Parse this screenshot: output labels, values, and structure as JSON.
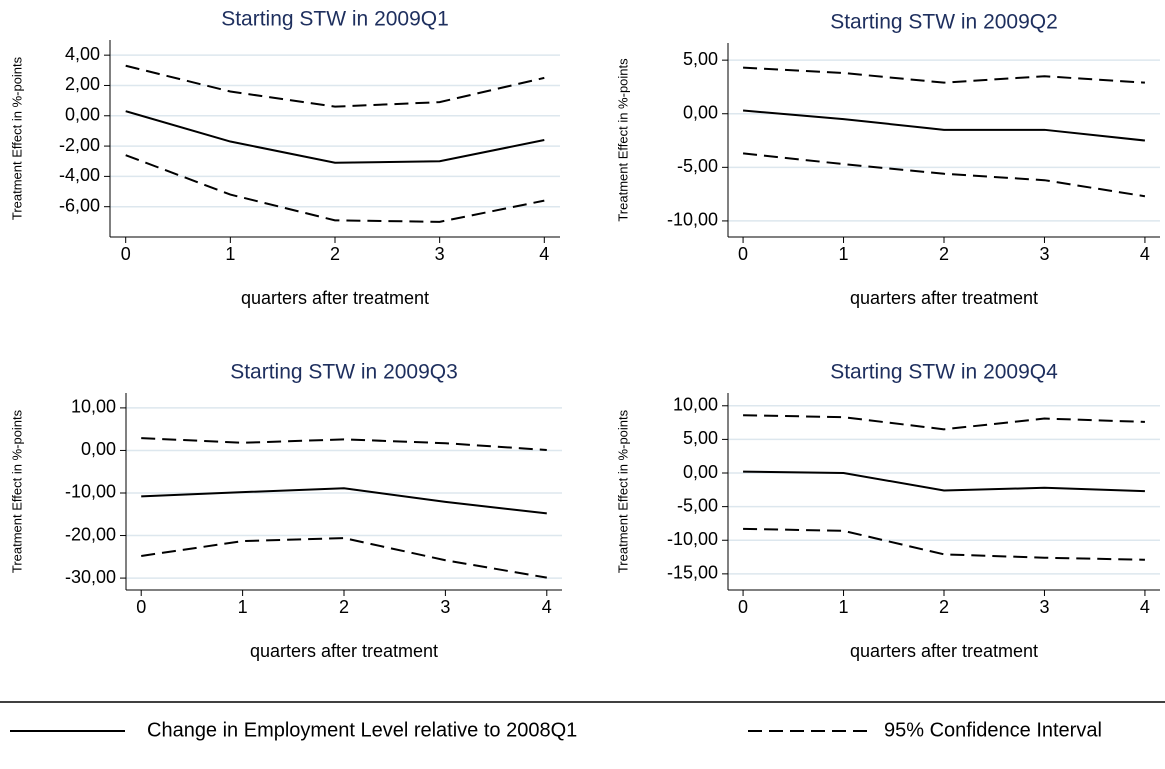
{
  "chart_data": [
    {
      "type": "line",
      "title": "Starting STW in 2009Q1",
      "xlabel": "quarters after treatment",
      "ylabel": "Treatment Effect in %-points",
      "x": [
        0,
        1,
        2,
        3,
        4
      ],
      "xlim": [
        -0.15,
        4.15
      ],
      "xticks": [
        0,
        1,
        2,
        3,
        4
      ],
      "ylim": [
        -8,
        5
      ],
      "yticks": [
        {
          "value": -6,
          "label": "-6,00"
        },
        {
          "value": -4,
          "label": "-4,00"
        },
        {
          "value": -2,
          "label": "-2,00"
        },
        {
          "value": 0,
          "label": "0,00"
        },
        {
          "value": 2,
          "label": "2,00"
        },
        {
          "value": 4,
          "label": "4,00"
        }
      ],
      "grid": true,
      "series": [
        {
          "name": "Change in Employment Level relative to 2008Q1",
          "color": "#000000",
          "values": [
            0.3,
            -1.7,
            -3.1,
            -3.0,
            -1.6
          ]
        },
        {
          "name": "95% Confidence Interval",
          "color": "#000000",
          "upper": [
            3.3,
            1.6,
            0.6,
            0.9,
            2.5
          ],
          "lower": [
            -2.6,
            -5.2,
            -6.9,
            -7.0,
            -5.6
          ]
        }
      ]
    },
    {
      "type": "line",
      "title": "Starting STW in 2009Q2",
      "xlabel": "quarters after treatment",
      "ylabel": "Treatment Effect in %-points",
      "x": [
        0,
        1,
        2,
        3,
        4
      ],
      "xlim": [
        -0.15,
        4.15
      ],
      "xticks": [
        0,
        1,
        2,
        3,
        4
      ],
      "ylim": [
        -11.5,
        6.6
      ],
      "yticks": [
        {
          "value": -10,
          "label": "-10,00"
        },
        {
          "value": -5,
          "label": "-5,00"
        },
        {
          "value": 0,
          "label": "0,00"
        },
        {
          "value": 5,
          "label": "5,00"
        }
      ],
      "grid": true,
      "series": [
        {
          "color": "#000000",
          "values": [
            0.3,
            -0.5,
            -1.5,
            -1.5,
            -2.5
          ]
        },
        {
          "color": "#000000",
          "upper": [
            4.3,
            3.8,
            2.9,
            3.5,
            2.9
          ],
          "lower": [
            -3.7,
            -4.7,
            -5.6,
            -6.2,
            -7.7
          ]
        }
      ]
    },
    {
      "type": "line",
      "title": "Starting STW in 2009Q3",
      "xlabel": "quarters after treatment",
      "ylabel": "Treatment Effect in %-points",
      "x": [
        0,
        1,
        2,
        3,
        4
      ],
      "xlim": [
        -0.15,
        4.15
      ],
      "xticks": [
        0,
        1,
        2,
        3,
        4
      ],
      "ylim": [
        -32.8,
        13.5
      ],
      "yticks": [
        {
          "value": -30,
          "label": "-30,00"
        },
        {
          "value": -20,
          "label": "-20,00"
        },
        {
          "value": -10,
          "label": "-10,00"
        },
        {
          "value": 0,
          "label": "0,00"
        },
        {
          "value": 10,
          "label": "10,00"
        }
      ],
      "grid": true,
      "series": [
        {
          "color": "#000000",
          "values": [
            -10.8,
            -9.8,
            -8.9,
            -12.1,
            -14.8
          ]
        },
        {
          "color": "#000000",
          "upper": [
            2.9,
            1.8,
            2.6,
            1.7,
            0.1
          ],
          "lower": [
            -24.8,
            -21.3,
            -20.6,
            -25.8,
            -29.9
          ]
        }
      ]
    },
    {
      "type": "line",
      "title": "Starting STW in 2009Q4",
      "xlabel": "quarters after treatment",
      "ylabel": "Treatment Effect in %-points",
      "x": [
        0,
        1,
        2,
        3,
        4
      ],
      "xlim": [
        -0.15,
        4.15
      ],
      "xticks": [
        0,
        1,
        2,
        3,
        4
      ],
      "ylim": [
        -17.4,
        11.9
      ],
      "yticks": [
        {
          "value": -15,
          "label": "-15,00"
        },
        {
          "value": -10,
          "label": "-10,00"
        },
        {
          "value": -5,
          "label": "-5,00"
        },
        {
          "value": 0,
          "label": "0,00"
        },
        {
          "value": 5,
          "label": "5,00"
        },
        {
          "value": 10,
          "label": "10,00"
        }
      ],
      "grid": true,
      "series": [
        {
          "color": "#000000",
          "values": [
            0.2,
            0.0,
            -2.6,
            -2.2,
            -2.7
          ]
        },
        {
          "color": "#000000",
          "upper": [
            8.6,
            8.3,
            6.5,
            8.1,
            7.6
          ],
          "lower": [
            -8.3,
            -8.6,
            -12.1,
            -12.6,
            -12.9
          ]
        }
      ]
    }
  ]
}
